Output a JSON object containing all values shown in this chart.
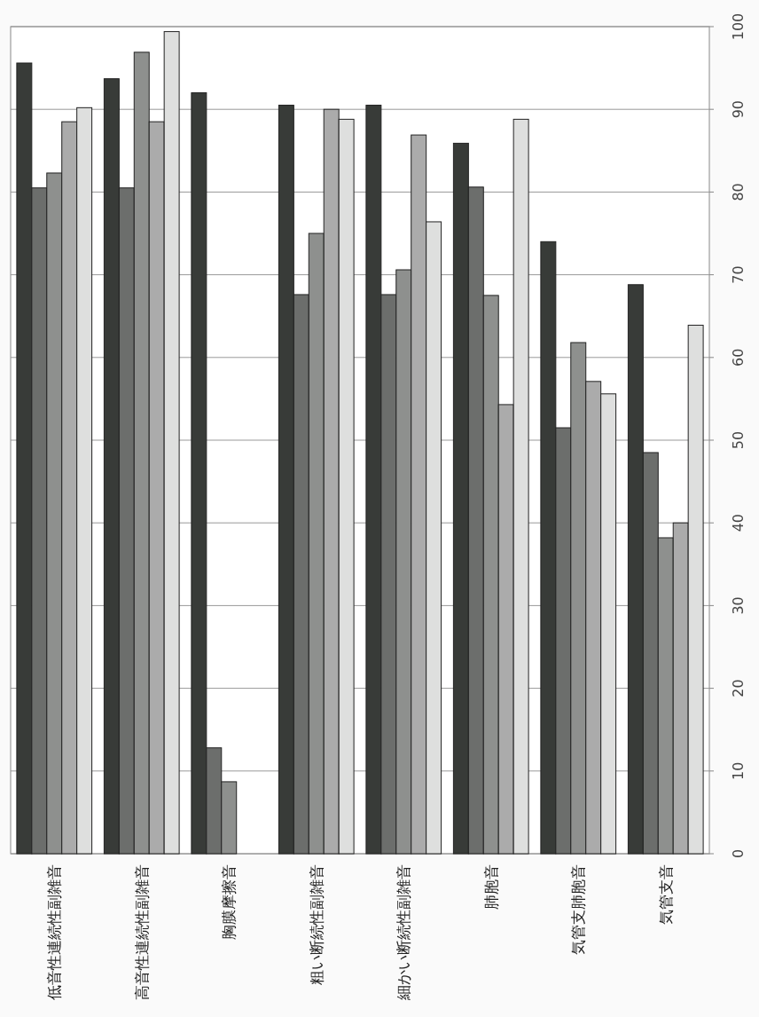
{
  "chart_data": {
    "type": "bar",
    "categories": [
      "低音性連続性副雑音",
      "高音性連続性副雑音",
      "胸膜摩擦音",
      "粗い断続性副雑音",
      "細かい断続性副雑音",
      "肺胞音",
      "気管支肺胞音",
      "気管支音"
    ],
    "series": [
      {
        "color": "#383b38",
        "values": [
          95.6,
          93.7,
          92.0,
          90.5,
          90.5,
          85.9,
          74.0,
          68.8
        ]
      },
      {
        "color": "#6c6e6c",
        "values": [
          80.5,
          80.5,
          12.8,
          67.6,
          67.6,
          80.6,
          51.5,
          48.5
        ]
      },
      {
        "color": "#8e908e",
        "values": [
          82.3,
          96.9,
          8.7,
          75.0,
          70.6,
          67.5,
          61.8,
          38.2
        ]
      },
      {
        "color": "#ababab",
        "values": [
          88.5,
          88.5,
          null,
          90.0,
          86.9,
          54.3,
          57.1,
          40.0
        ]
      },
      {
        "color": "#dedfde",
        "values": [
          90.2,
          99.4,
          null,
          88.8,
          76.4,
          88.8,
          55.6,
          63.9
        ]
      }
    ],
    "ylim": [
      0,
      100
    ],
    "yticks": [
      0,
      10,
      20,
      30,
      40,
      50,
      60,
      70,
      80,
      90,
      100
    ],
    "grid": "y"
  }
}
